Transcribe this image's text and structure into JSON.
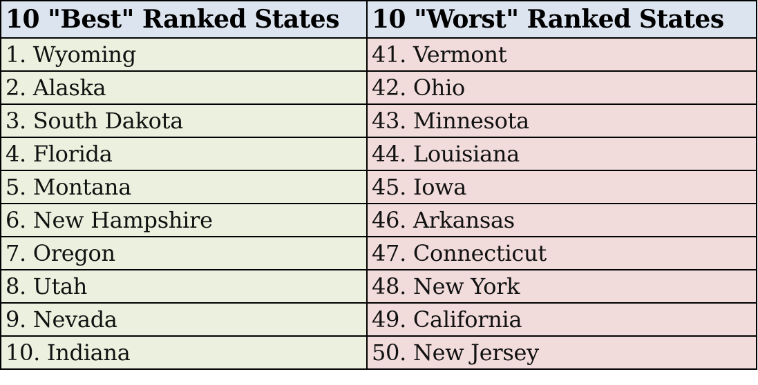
{
  "table": {
    "header": [
      "10 \"Best\" Ranked States",
      "10 \"Worst\" Ranked States"
    ],
    "rows": [
      [
        "1. Wyoming",
        "41. Vermont"
      ],
      [
        "2. Alaska",
        "42. Ohio"
      ],
      [
        "3. South Dakota",
        "43. Minnesota"
      ],
      [
        "4. Florida",
        "44. Louisiana"
      ],
      [
        "5. Montana",
        "45. Iowa"
      ],
      [
        "6. New Hampshire",
        "46. Arkansas"
      ],
      [
        "7. Oregon",
        "47. Connecticut"
      ],
      [
        "8. Utah",
        "48. New York"
      ],
      [
        "9. Nevada",
        "49. California"
      ],
      [
        "10. Indiana",
        "50. New Jersey"
      ]
    ]
  }
}
